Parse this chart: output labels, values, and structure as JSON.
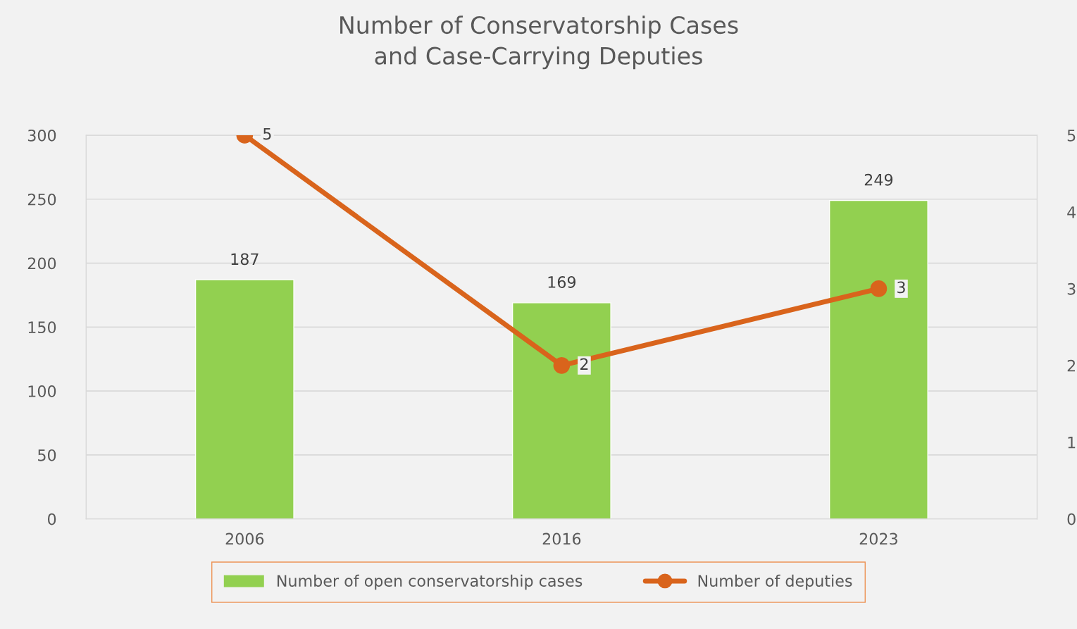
{
  "chart_data": {
    "type": "bar",
    "title": "Number of Conservatorship Cases\nand Case-Carrying Deputies",
    "categories": [
      "2006",
      "2016",
      "2023"
    ],
    "series": [
      {
        "name": "Number of open conservatorship cases",
        "color": "#92d050",
        "values": [
          187,
          169,
          249
        ]
      },
      {
        "name": "Number of deputies",
        "type": "line",
        "axis": "y2",
        "color": "#d9641c",
        "marker": "circle",
        "values": [
          5,
          2,
          3
        ]
      }
    ],
    "ylim": [
      0,
      300
    ],
    "yticks": [
      0,
      50,
      100,
      150,
      200,
      250,
      300
    ],
    "y2lim": [
      0,
      5
    ],
    "y2ticks": [
      0,
      1,
      2,
      3,
      4,
      5
    ],
    "grid": "y",
    "legend": "bottom",
    "data_labels": true
  }
}
